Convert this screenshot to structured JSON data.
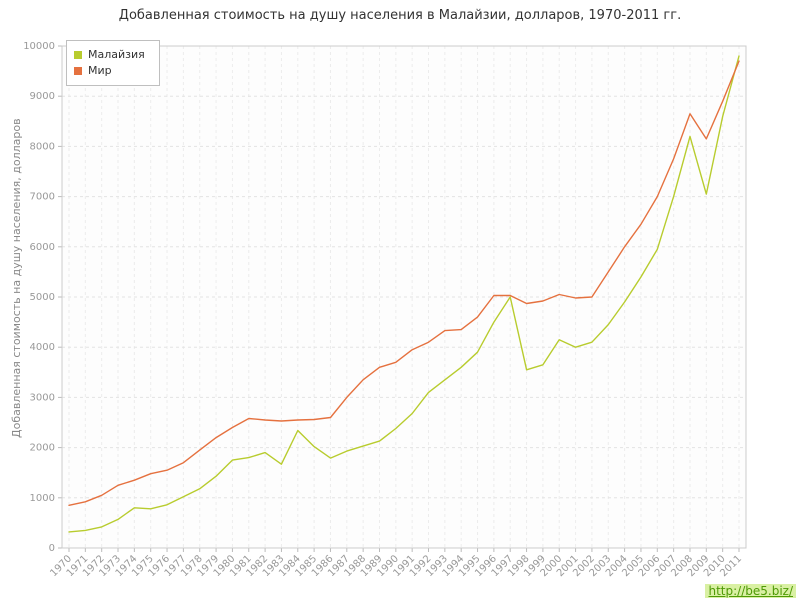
{
  "watermark": {
    "text": "http://be5.biz/",
    "color": "#4e9a06",
    "background": "#d9f0a3"
  },
  "chart_data": {
    "type": "line",
    "title": "Добавленная стоимость на душу населения в Малайзии, долларов, 1970-2011 гг.",
    "ylabel": "Добавленная стоимость на душу населения, долларов",
    "xlabel": "",
    "ylim": [
      0,
      10000
    ],
    "ytick_step": 1000,
    "grid": true,
    "legend_position": "top-left",
    "axis_text_color": "#999999",
    "grid_color": "#e3e3e3",
    "categories": [
      1970,
      1971,
      1972,
      1973,
      1974,
      1975,
      1976,
      1977,
      1978,
      1979,
      1980,
      1981,
      1982,
      1983,
      1984,
      1985,
      1986,
      1987,
      1988,
      1989,
      1990,
      1991,
      1992,
      1993,
      1994,
      1995,
      1996,
      1997,
      1998,
      1999,
      2000,
      2001,
      2002,
      2003,
      2004,
      2005,
      2006,
      2007,
      2008,
      2009,
      2010,
      2011
    ],
    "series": [
      {
        "name": "Малайзия",
        "color": "#b8cc2e",
        "values": [
          320,
          350,
          420,
          570,
          800,
          780,
          860,
          1020,
          1180,
          1430,
          1750,
          1800,
          1900,
          1670,
          2340,
          2020,
          1790,
          1930,
          2030,
          2130,
          2380,
          2680,
          3100,
          3350,
          3600,
          3900,
          4500,
          5000,
          3550,
          3650,
          4150,
          4000,
          4100,
          4450,
          4900,
          5400,
          5950,
          7000,
          8200,
          7050,
          8600,
          9800
        ]
      },
      {
        "name": "Мир",
        "color": "#e5713f",
        "values": [
          850,
          920,
          1050,
          1250,
          1350,
          1480,
          1550,
          1700,
          1950,
          2200,
          2400,
          2580,
          2550,
          2530,
          2550,
          2560,
          2600,
          3000,
          3350,
          3600,
          3700,
          3950,
          4100,
          4330,
          4350,
          4600,
          5030,
          5030,
          4870,
          4920,
          5050,
          4980,
          5000,
          5500,
          6000,
          6450,
          7000,
          7750,
          8650,
          8150,
          8900,
          9700
        ]
      }
    ]
  }
}
